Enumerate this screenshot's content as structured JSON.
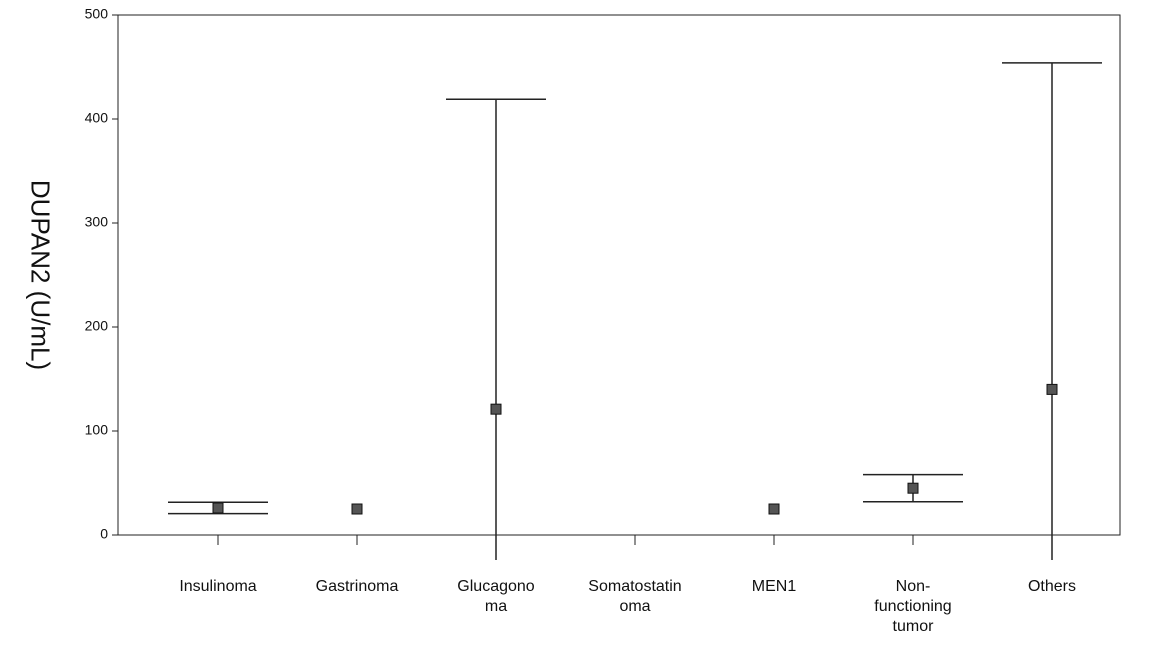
{
  "chart_data": {
    "type": "errorbar",
    "y_label": "DUPAN2 (U/mL)",
    "categories": [
      "Insulinoma",
      "Gastrinoma",
      "Glucagono\nma",
      "Somatostatin\noma",
      "MEN1",
      "Non-\nfunctioning\ntumor",
      "Others"
    ],
    "values": [
      26,
      25,
      121,
      null,
      25,
      45,
      140
    ],
    "errors": [
      5.5,
      null,
      298,
      null,
      null,
      13,
      314
    ],
    "color": "#555555",
    "ylim": [
      0,
      500
    ],
    "yticks": [
      0,
      100,
      200,
      300,
      400,
      500
    ],
    "grid": false
  }
}
